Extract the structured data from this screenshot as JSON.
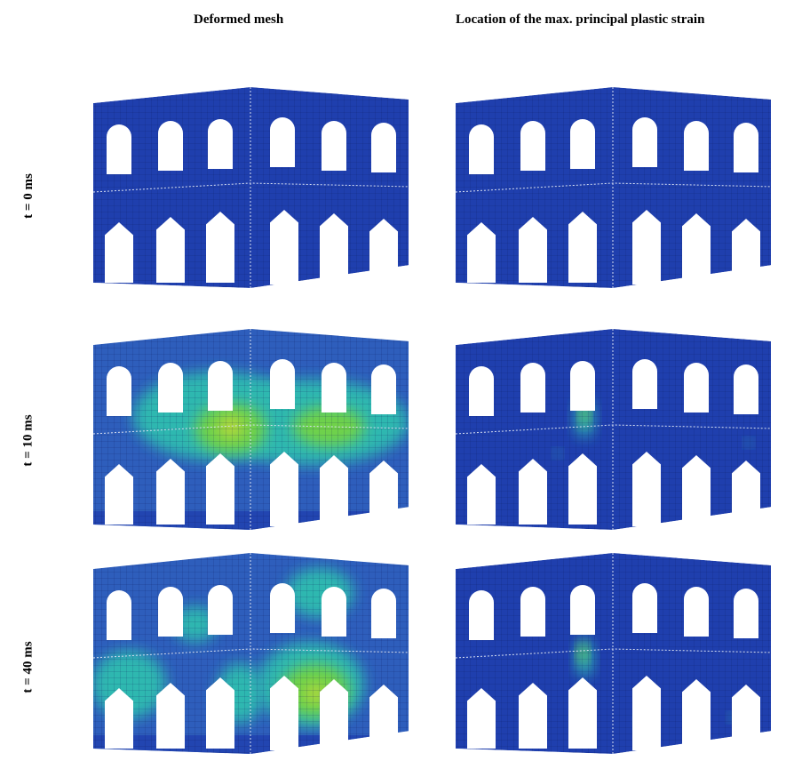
{
  "columns": [
    "Deformed mesh",
    "Location of the max. principal plastic strain"
  ],
  "rows": [
    "t = 0 ms",
    "t = 10 ms",
    "t = 40 ms"
  ],
  "colors": {
    "mesh_base": "#1f3fae",
    "mesh_dark": "#18309a",
    "strain_light": "#3a78c9",
    "strain_mid": "#2fb8b0",
    "strain_high": "#6fd24a",
    "strain_peak": "#b8d83a",
    "mesh_line": "#0a1656"
  }
}
